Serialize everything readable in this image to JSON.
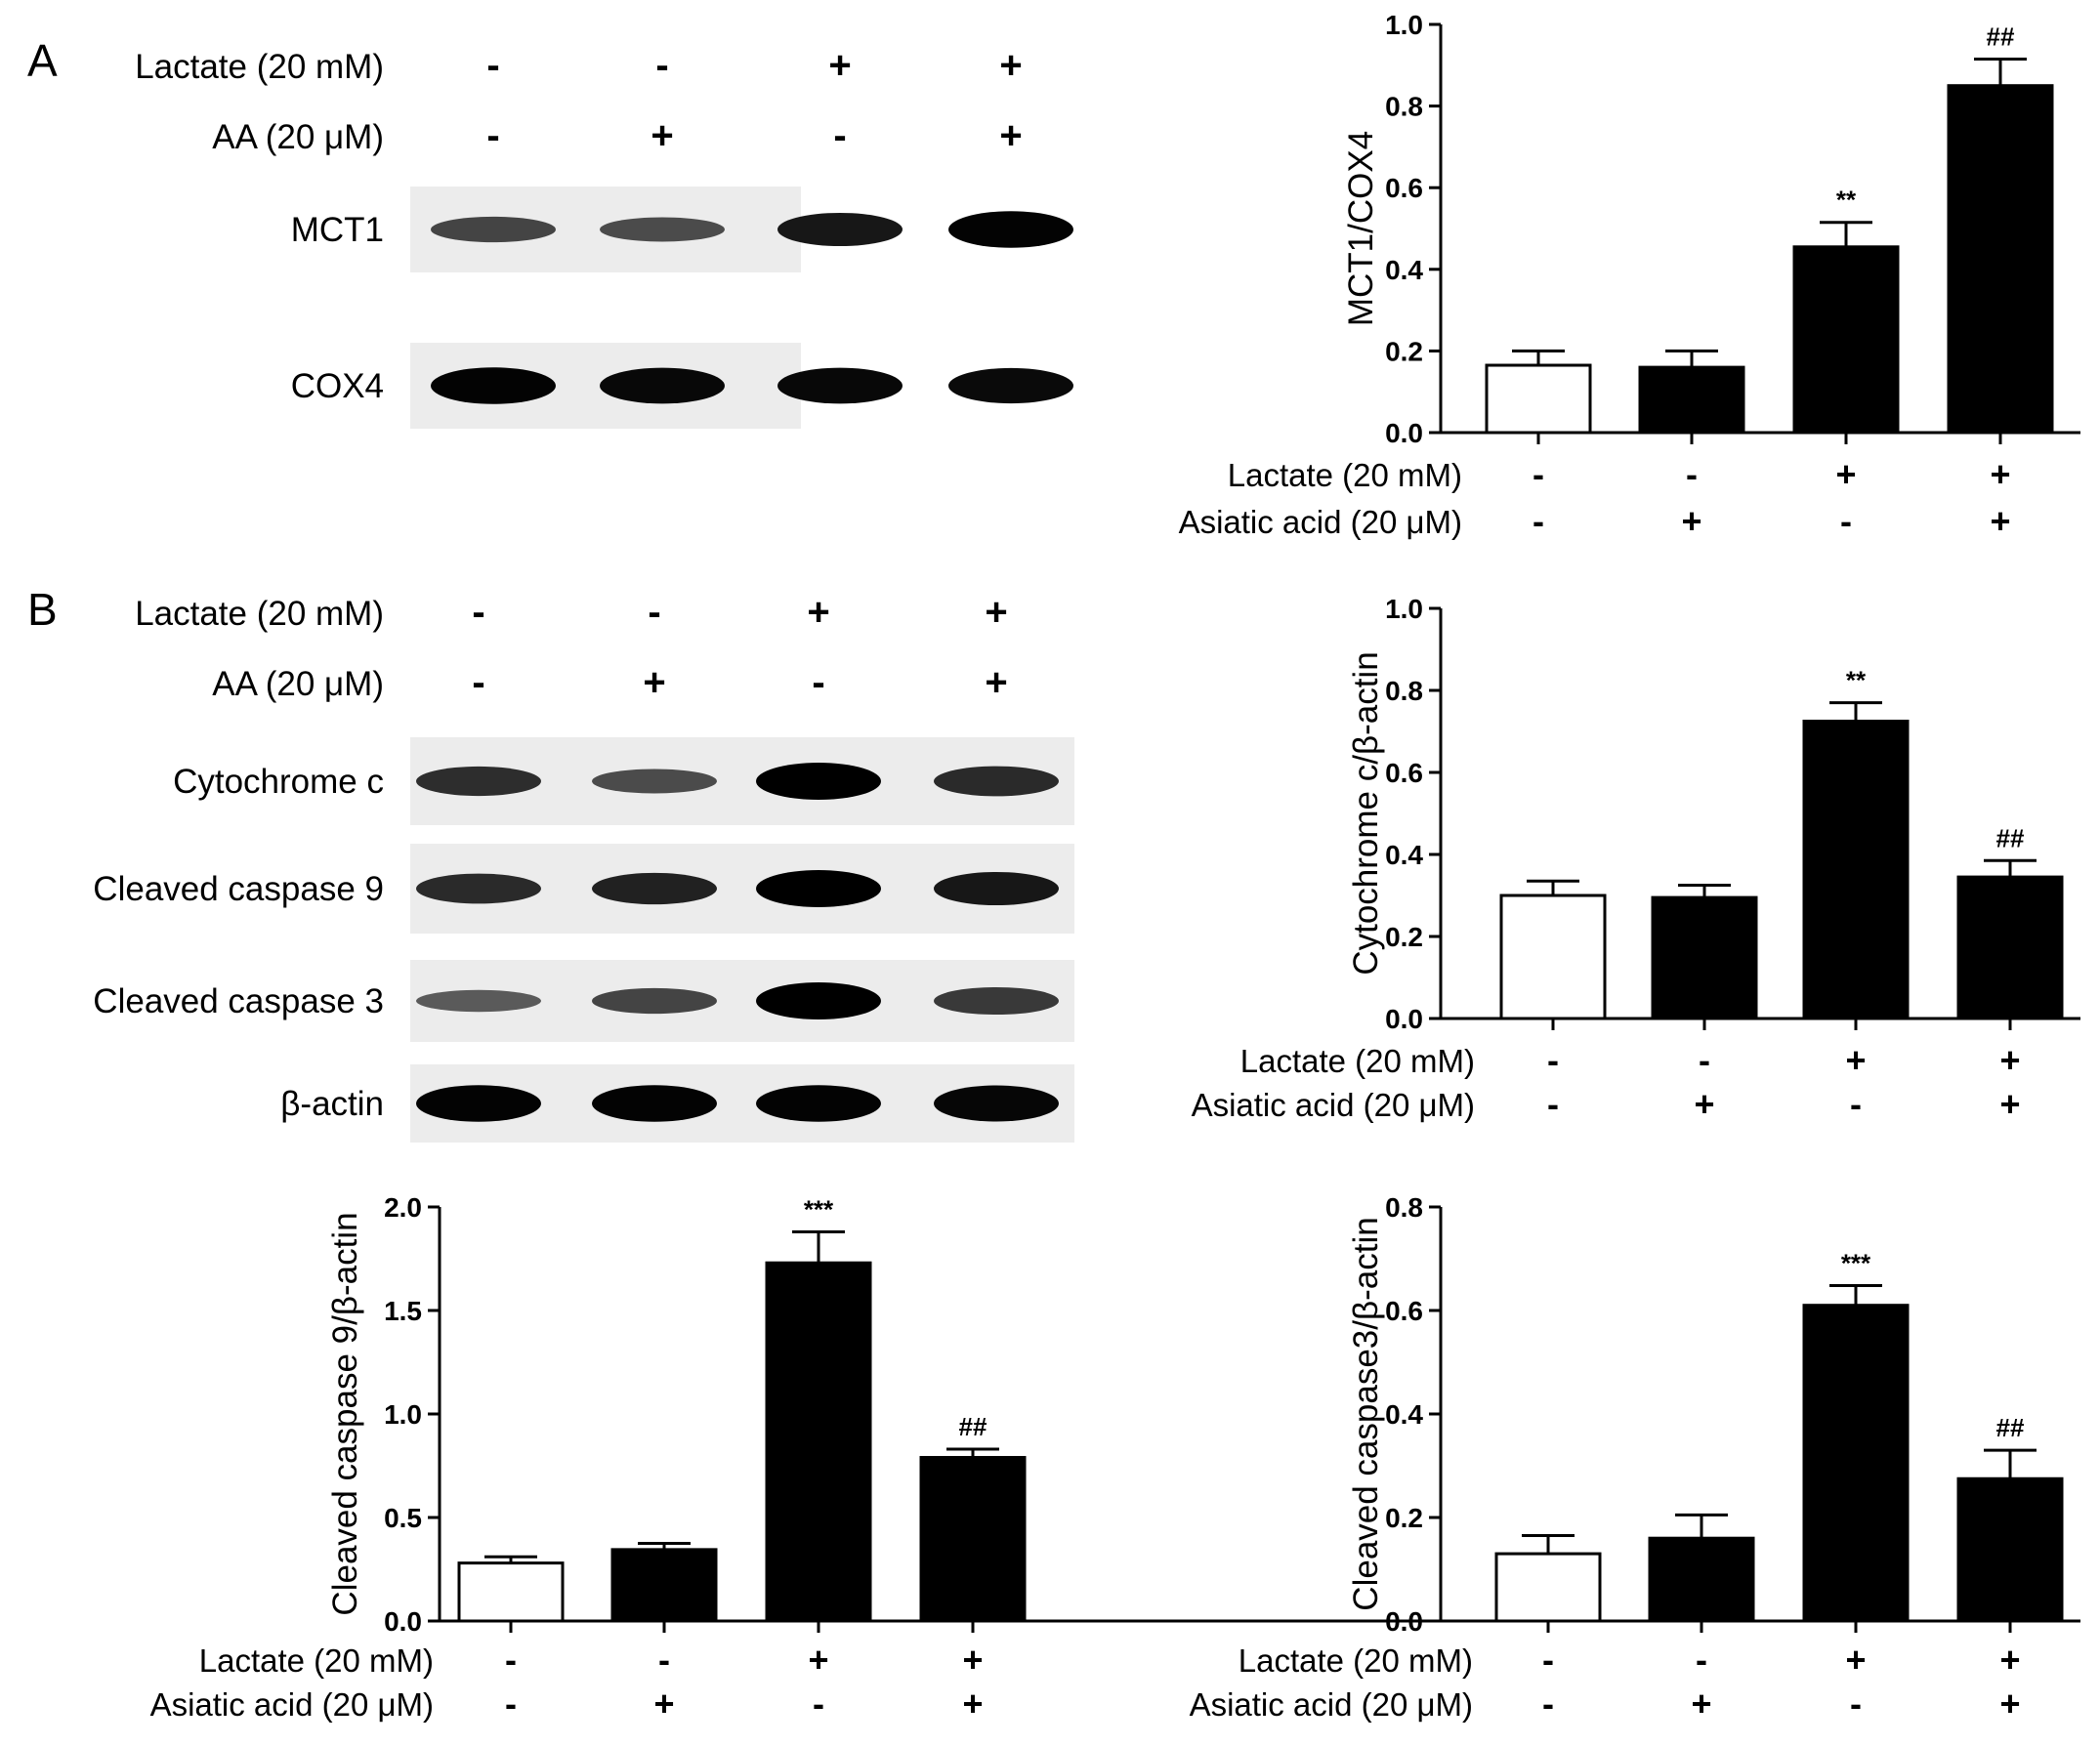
{
  "panels": {
    "A": {
      "letter": "A",
      "conditions": [
        {
          "label": "Lactate (20 mM)",
          "signs": [
            "-",
            "-",
            "+",
            "+"
          ]
        },
        {
          "label": "AA (20 μM)",
          "signs": [
            "-",
            "+",
            "-",
            "+"
          ]
        }
      ],
      "bands": [
        {
          "label": "MCT1",
          "intensity": [
            0.55,
            0.5,
            0.85,
            0.98
          ]
        },
        {
          "label": "COX4",
          "intensity": [
            0.98,
            0.95,
            0.95,
            0.93
          ]
        }
      ]
    },
    "B": {
      "letter": "B",
      "conditions": [
        {
          "label": "Lactate (20 mM)",
          "signs": [
            "-",
            "-",
            "+",
            "+"
          ]
        },
        {
          "label": "AA (20 μM)",
          "signs": [
            "-",
            "+",
            "-",
            "+"
          ]
        }
      ],
      "bands": [
        {
          "label": "Cytochrome c",
          "intensity": [
            0.7,
            0.5,
            1.0,
            0.72
          ]
        },
        {
          "label": "Cleaved caspase 9",
          "intensity": [
            0.72,
            0.78,
            1.0,
            0.85
          ]
        },
        {
          "label": "Cleaved caspase 3",
          "intensity": [
            0.4,
            0.55,
            1.0,
            0.62
          ]
        },
        {
          "label": "β-actin",
          "intensity": [
            0.98,
            0.98,
            0.98,
            0.96
          ]
        }
      ]
    }
  },
  "chart_data": [
    {
      "type": "bar",
      "panel": "A",
      "ylabel": "MCT1/COX4",
      "ylim": [
        0,
        1.0
      ],
      "yticks": [
        "0.0",
        "0.2",
        "0.4",
        "0.6",
        "0.8",
        "1.0"
      ],
      "values": [
        0.165,
        0.16,
        0.455,
        0.85
      ],
      "errors": [
        0.035,
        0.04,
        0.06,
        0.065
      ],
      "fills": [
        "#ffffff",
        "#000000",
        "#000000",
        "#000000"
      ],
      "annotations": [
        "",
        "",
        "**",
        "##"
      ],
      "conditions": [
        {
          "label": "Lactate (20 mM)",
          "signs": [
            "-",
            "-",
            "+",
            "+"
          ]
        },
        {
          "label": "Asiatic acid (20 μM)",
          "signs": [
            "-",
            "+",
            "-",
            "+"
          ]
        }
      ]
    },
    {
      "type": "bar",
      "panel": "B",
      "ylabel": "Cytochrome c/β-actin",
      "ylim": [
        0,
        1.0
      ],
      "yticks": [
        "0.0",
        "0.2",
        "0.4",
        "0.6",
        "0.8",
        "1.0"
      ],
      "values": [
        0.3,
        0.295,
        0.725,
        0.345
      ],
      "errors": [
        0.035,
        0.03,
        0.045,
        0.04
      ],
      "fills": [
        "#ffffff",
        "#000000",
        "#000000",
        "#000000"
      ],
      "annotations": [
        "",
        "",
        "**",
        "##"
      ],
      "conditions": [
        {
          "label": "Lactate (20 mM)",
          "signs": [
            "-",
            "-",
            "+",
            "+"
          ]
        },
        {
          "label": "Asiatic acid (20 μM)",
          "signs": [
            "-",
            "+",
            "-",
            "+"
          ]
        }
      ]
    },
    {
      "type": "bar",
      "panel": "B",
      "ylabel": "Cleaved caspase 9/β-actin",
      "ylim": [
        0,
        2.0
      ],
      "yticks": [
        "0.0",
        "0.5",
        "1.0",
        "1.5",
        "2.0"
      ],
      "values": [
        0.28,
        0.345,
        1.73,
        0.79
      ],
      "errors": [
        0.03,
        0.03,
        0.15,
        0.04
      ],
      "fills": [
        "#ffffff",
        "#000000",
        "#000000",
        "#000000"
      ],
      "annotations": [
        "",
        "",
        "***",
        "##"
      ],
      "conditions": [
        {
          "label": "Lactate (20 mM)",
          "signs": [
            "-",
            "-",
            "+",
            "+"
          ]
        },
        {
          "label": "Asiatic acid (20 μM)",
          "signs": [
            "-",
            "+",
            "-",
            "+"
          ]
        }
      ]
    },
    {
      "type": "bar",
      "panel": "B",
      "ylabel": "Cleaved caspase3/β-actin",
      "ylim": [
        0,
        0.8
      ],
      "yticks": [
        "0.0",
        "0.2",
        "0.4",
        "0.6",
        "0.8"
      ],
      "values": [
        0.13,
        0.16,
        0.61,
        0.275
      ],
      "errors": [
        0.035,
        0.045,
        0.038,
        0.055
      ],
      "fills": [
        "#ffffff",
        "#000000",
        "#000000",
        "#000000"
      ],
      "annotations": [
        "",
        "",
        "***",
        "##"
      ],
      "conditions": [
        {
          "label": "Lactate (20 mM)",
          "signs": [
            "-",
            "-",
            "+",
            "+"
          ]
        },
        {
          "label": "Asiatic acid (20 μM)",
          "signs": [
            "-",
            "+",
            "-",
            "+"
          ]
        }
      ]
    }
  ]
}
